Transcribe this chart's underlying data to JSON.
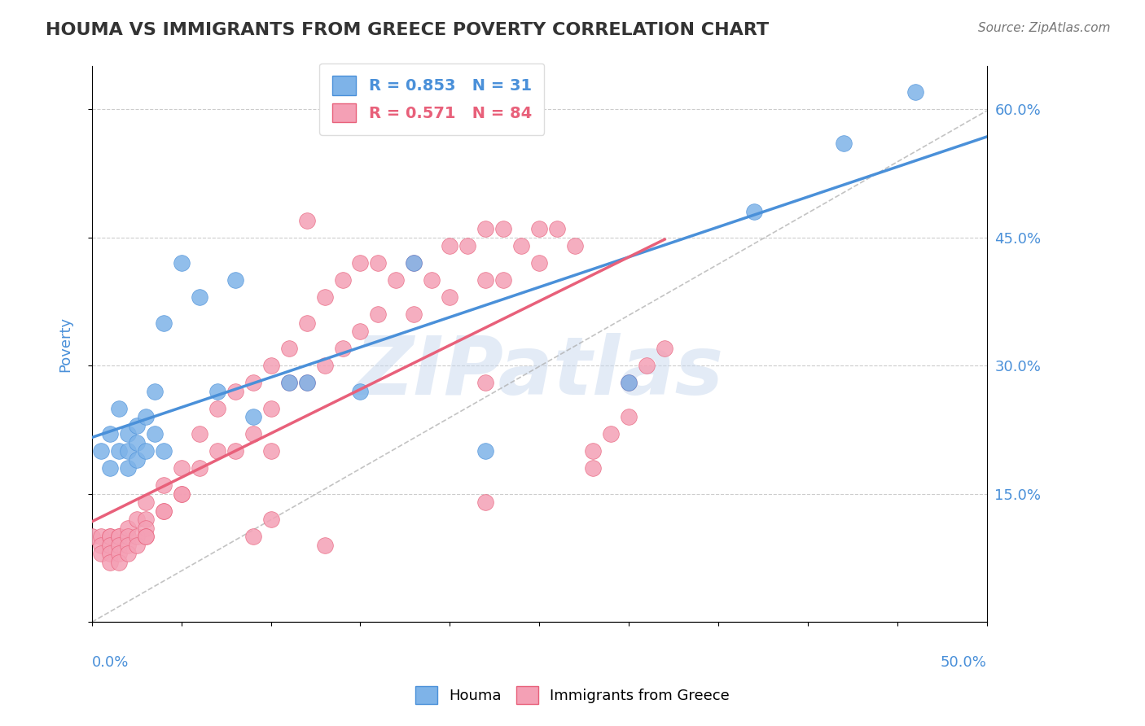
{
  "title": "HOUMA VS IMMIGRANTS FROM GREECE POVERTY CORRELATION CHART",
  "source": "Source: ZipAtlas.com",
  "ylabel_ticks": [
    0.0,
    0.15,
    0.3,
    0.45,
    0.6
  ],
  "ylabel_labels": [
    "",
    "15.0%",
    "30.0%",
    "45.0%",
    "60.0%"
  ],
  "xmin": 0.0,
  "xmax": 0.5,
  "ymin": 0.0,
  "ymax": 0.65,
  "houma_R": 0.853,
  "houma_N": 31,
  "greece_R": 0.571,
  "greece_N": 84,
  "houma_color": "#7eb3e8",
  "greece_color": "#f4a0b5",
  "houma_line_color": "#4a90d9",
  "greece_line_color": "#e8607a",
  "ref_line_color": "#aaaaaa",
  "title_color": "#333333",
  "axis_label_color": "#4a90d9",
  "watermark_color": "#c8d8ee",
  "background_color": "#ffffff",
  "houma_x": [
    0.005,
    0.01,
    0.01,
    0.015,
    0.015,
    0.02,
    0.02,
    0.02,
    0.025,
    0.025,
    0.025,
    0.03,
    0.03,
    0.035,
    0.035,
    0.04,
    0.04,
    0.05,
    0.06,
    0.07,
    0.08,
    0.09,
    0.11,
    0.12,
    0.15,
    0.18,
    0.22,
    0.3,
    0.37,
    0.42,
    0.46
  ],
  "houma_y": [
    0.2,
    0.22,
    0.18,
    0.25,
    0.2,
    0.22,
    0.2,
    0.18,
    0.23,
    0.21,
    0.19,
    0.24,
    0.2,
    0.27,
    0.22,
    0.35,
    0.2,
    0.42,
    0.38,
    0.27,
    0.4,
    0.24,
    0.28,
    0.28,
    0.27,
    0.42,
    0.2,
    0.28,
    0.48,
    0.56,
    0.62
  ],
  "greece_x": [
    0.0,
    0.005,
    0.005,
    0.005,
    0.01,
    0.01,
    0.01,
    0.01,
    0.01,
    0.015,
    0.015,
    0.015,
    0.015,
    0.015,
    0.02,
    0.02,
    0.02,
    0.02,
    0.025,
    0.025,
    0.025,
    0.03,
    0.03,
    0.03,
    0.03,
    0.04,
    0.04,
    0.05,
    0.05,
    0.06,
    0.07,
    0.07,
    0.08,
    0.09,
    0.09,
    0.1,
    0.1,
    0.1,
    0.11,
    0.11,
    0.12,
    0.12,
    0.13,
    0.13,
    0.14,
    0.14,
    0.15,
    0.15,
    0.16,
    0.16,
    0.17,
    0.18,
    0.18,
    0.19,
    0.2,
    0.2,
    0.21,
    0.22,
    0.22,
    0.23,
    0.23,
    0.24,
    0.25,
    0.25,
    0.26,
    0.27,
    0.28,
    0.28,
    0.29,
    0.3,
    0.3,
    0.31,
    0.32,
    0.12,
    0.22,
    0.13,
    0.03,
    0.04,
    0.05,
    0.06,
    0.08,
    0.09,
    0.1,
    0.22
  ],
  "greece_y": [
    0.1,
    0.1,
    0.09,
    0.08,
    0.1,
    0.1,
    0.09,
    0.08,
    0.07,
    0.1,
    0.1,
    0.09,
    0.08,
    0.07,
    0.11,
    0.1,
    0.09,
    0.08,
    0.12,
    0.1,
    0.09,
    0.14,
    0.12,
    0.11,
    0.1,
    0.16,
    0.13,
    0.18,
    0.15,
    0.22,
    0.25,
    0.2,
    0.27,
    0.28,
    0.22,
    0.3,
    0.25,
    0.2,
    0.32,
    0.28,
    0.35,
    0.28,
    0.38,
    0.3,
    0.4,
    0.32,
    0.42,
    0.34,
    0.42,
    0.36,
    0.4,
    0.42,
    0.36,
    0.4,
    0.44,
    0.38,
    0.44,
    0.46,
    0.4,
    0.46,
    0.4,
    0.44,
    0.46,
    0.42,
    0.46,
    0.44,
    0.2,
    0.18,
    0.22,
    0.24,
    0.28,
    0.3,
    0.32,
    0.47,
    0.28,
    0.09,
    0.1,
    0.13,
    0.15,
    0.18,
    0.2,
    0.1,
    0.12,
    0.14
  ]
}
